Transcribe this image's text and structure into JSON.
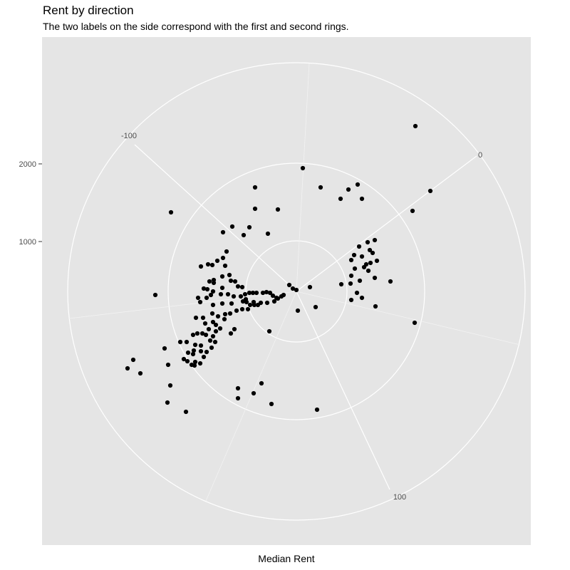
{
  "chart_data": {
    "type": "scatter",
    "coord": "polar",
    "title": "Rent by direction",
    "subtitle": "The two labels on the side correspond with the first and second rings.",
    "xlabel": "Median Rent",
    "ylabel": "",
    "grid": true,
    "background": "#e5e5e5",
    "grid_color": "#ffffff",
    "point_color": "#000000",
    "theta_ticks": [
      "-100",
      "0",
      "100"
    ],
    "radial_ticks": [
      "1000",
      "2000"
    ],
    "points": [
      [
        583,
        177
      ],
      [
        604,
        268
      ],
      [
        579,
        296
      ],
      [
        425,
        236
      ],
      [
        450,
        263
      ],
      [
        489,
        266
      ],
      [
        502,
        259
      ],
      [
        478,
        279
      ],
      [
        508,
        279
      ],
      [
        358,
        263
      ],
      [
        390,
        294
      ],
      [
        358,
        293
      ],
      [
        240,
        298
      ],
      [
        326,
        318
      ],
      [
        313,
        326
      ],
      [
        350,
        319
      ],
      [
        342,
        330
      ],
      [
        376,
        328
      ],
      [
        526,
        337
      ],
      [
        516,
        340
      ],
      [
        519,
        351
      ],
      [
        523,
        355
      ],
      [
        529,
        366
      ],
      [
        520,
        369
      ],
      [
        514,
        371
      ],
      [
        504,
        346
      ],
      [
        497,
        358
      ],
      [
        493,
        365
      ],
      [
        508,
        360
      ],
      [
        511,
        375
      ],
      [
        498,
        377
      ],
      [
        493,
        387
      ],
      [
        517,
        380
      ],
      [
        526,
        390
      ],
      [
        548,
        395
      ],
      [
        505,
        394
      ],
      [
        492,
        398
      ],
      [
        479,
        399
      ],
      [
        501,
        411
      ],
      [
        493,
        421
      ],
      [
        508,
        418
      ],
      [
        527,
        430
      ],
      [
        582,
        453
      ],
      [
        318,
        353
      ],
      [
        313,
        362
      ],
      [
        305,
        366
      ],
      [
        292,
        371
      ],
      [
        298,
        372
      ],
      [
        316,
        373
      ],
      [
        282,
        374
      ],
      [
        322,
        386
      ],
      [
        312,
        388
      ],
      [
        300,
        393
      ],
      [
        294,
        395
      ],
      [
        300,
        397
      ],
      [
        291,
        406
      ],
      [
        286,
        405
      ],
      [
        299,
        409
      ],
      [
        312,
        404
      ],
      [
        324,
        394
      ],
      [
        330,
        395
      ],
      [
        334,
        402
      ],
      [
        340,
        403
      ],
      [
        344,
        413
      ],
      [
        350,
        411
      ],
      [
        355,
        411
      ],
      [
        360,
        411
      ],
      [
        369,
        411
      ],
      [
        374,
        410
      ],
      [
        379,
        411
      ],
      [
        383,
        415
      ],
      [
        388,
        418
      ],
      [
        395,
        416
      ],
      [
        406,
        400
      ],
      [
        411,
        405
      ],
      [
        416,
        407
      ],
      [
        435,
        403
      ],
      [
        398,
        414
      ],
      [
        390,
        419
      ],
      [
        385,
        423
      ],
      [
        375,
        425
      ],
      [
        366,
        425
      ],
      [
        356,
        424
      ],
      [
        345,
        420
      ],
      [
        338,
        416
      ],
      [
        328,
        416
      ],
      [
        320,
        413
      ],
      [
        310,
        413
      ],
      [
        296,
        414
      ],
      [
        290,
        418
      ],
      [
        278,
        418
      ],
      [
        281,
        424
      ],
      [
        299,
        428
      ],
      [
        312,
        426
      ],
      [
        325,
        426
      ],
      [
        341,
        423
      ],
      [
        346,
        424
      ],
      [
        351,
        428
      ],
      [
        357,
        428
      ],
      [
        362,
        428
      ],
      [
        348,
        434
      ],
      [
        340,
        434
      ],
      [
        332,
        436
      ],
      [
        323,
        440
      ],
      [
        316,
        441
      ],
      [
        298,
        440
      ],
      [
        306,
        444
      ],
      [
        315,
        448
      ],
      [
        285,
        446
      ],
      [
        275,
        446
      ],
      [
        288,
        454
      ],
      [
        299,
        452
      ],
      [
        303,
        456
      ],
      [
        309,
        461
      ],
      [
        293,
        462
      ],
      [
        303,
        465
      ],
      [
        284,
        468
      ],
      [
        277,
        468
      ],
      [
        271,
        470
      ],
      [
        289,
        470
      ],
      [
        299,
        472
      ],
      [
        324,
        468
      ],
      [
        329,
        462
      ],
      [
        295,
        478
      ],
      [
        302,
        480
      ],
      [
        262,
        480
      ],
      [
        253,
        480
      ],
      [
        274,
        484
      ],
      [
        282,
        485
      ],
      [
        297,
        488
      ],
      [
        272,
        492
      ],
      [
        282,
        493
      ],
      [
        290,
        494
      ],
      [
        264,
        495
      ],
      [
        271,
        497
      ],
      [
        286,
        501
      ],
      [
        258,
        504
      ],
      [
        263,
        507
      ],
      [
        274,
        508
      ],
      [
        281,
        510
      ],
      [
        273,
        513
      ],
      [
        269,
        512
      ],
      [
        218,
        414
      ],
      [
        231,
        489
      ],
      [
        236,
        512
      ],
      [
        187,
        505
      ],
      [
        179,
        517
      ],
      [
        197,
        524
      ],
      [
        239,
        541
      ],
      [
        235,
        565
      ],
      [
        261,
        578
      ],
      [
        334,
        545
      ],
      [
        367,
        538
      ],
      [
        356,
        552
      ],
      [
        334,
        559
      ],
      [
        381,
        567
      ],
      [
        445,
        575
      ],
      [
        443,
        431
      ],
      [
        418,
        436
      ],
      [
        378,
        465
      ]
    ]
  }
}
